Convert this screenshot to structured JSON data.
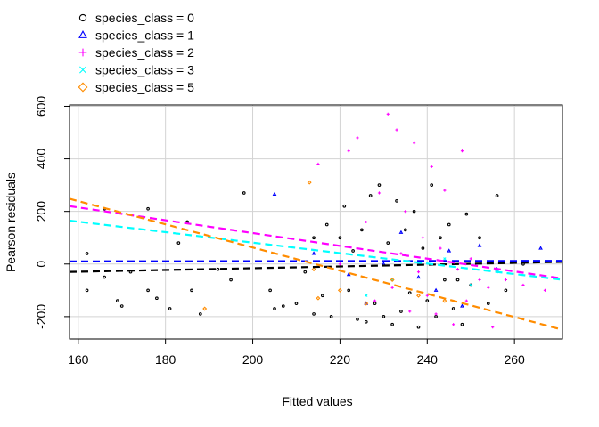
{
  "chart_data": {
    "type": "scatter",
    "title": "",
    "xlabel": "Fitted values",
    "ylabel": "Pearson residuals",
    "xlim": [
      158,
      271
    ],
    "ylim": [
      -285,
      605
    ],
    "xticks": [
      160,
      180,
      200,
      220,
      240,
      260
    ],
    "yticks": [
      -200,
      0,
      200,
      400,
      600
    ],
    "grid": true,
    "legend_position": "top-left",
    "series": [
      {
        "name": "species_class = 0",
        "color": "#000000",
        "marker": "circle",
        "fit": {
          "x": [
            158,
            271
          ],
          "y": [
            -30,
            8
          ]
        },
        "points": [
          [
            162,
            40
          ],
          [
            162,
            -100
          ],
          [
            166,
            -50
          ],
          [
            166,
            210
          ],
          [
            169,
            -140
          ],
          [
            170,
            -160
          ],
          [
            172,
            -30
          ],
          [
            176,
            -100
          ],
          [
            176,
            210
          ],
          [
            178,
            -130
          ],
          [
            181,
            -170
          ],
          [
            183,
            80
          ],
          [
            185,
            160
          ],
          [
            186,
            -100
          ],
          [
            188,
            -190
          ],
          [
            192,
            -20
          ],
          [
            195,
            -60
          ],
          [
            198,
            270
          ],
          [
            204,
            -100
          ],
          [
            205,
            -170
          ],
          [
            207,
            -160
          ],
          [
            210,
            -150
          ],
          [
            212,
            -30
          ],
          [
            214,
            100
          ],
          [
            214,
            -190
          ],
          [
            216,
            -120
          ],
          [
            217,
            150
          ],
          [
            218,
            -200
          ],
          [
            220,
            100
          ],
          [
            221,
            220
          ],
          [
            222,
            -100
          ],
          [
            223,
            50
          ],
          [
            224,
            -210
          ],
          [
            225,
            130
          ],
          [
            226,
            -220
          ],
          [
            227,
            260
          ],
          [
            228,
            -150
          ],
          [
            229,
            300
          ],
          [
            230,
            -200
          ],
          [
            231,
            80
          ],
          [
            232,
            -230
          ],
          [
            233,
            240
          ],
          [
            234,
            -180
          ],
          [
            235,
            130
          ],
          [
            236,
            -110
          ],
          [
            237,
            200
          ],
          [
            238,
            -240
          ],
          [
            239,
            60
          ],
          [
            240,
            -140
          ],
          [
            241,
            300
          ],
          [
            242,
            -200
          ],
          [
            243,
            100
          ],
          [
            244,
            -60
          ],
          [
            245,
            150
          ],
          [
            246,
            -170
          ],
          [
            247,
            -60
          ],
          [
            248,
            -230
          ],
          [
            249,
            190
          ],
          [
            250,
            -80
          ],
          [
            252,
            100
          ],
          [
            254,
            -150
          ],
          [
            256,
            260
          ],
          [
            258,
            -100
          ],
          [
            262,
            0
          ]
        ]
      },
      {
        "name": "species_class = 1",
        "color": "#0000ff",
        "marker": "triangle",
        "fit": {
          "x": [
            158,
            271
          ],
          "y": [
            10,
            12
          ]
        },
        "points": [
          [
            205,
            265
          ],
          [
            214,
            40
          ],
          [
            222,
            -40
          ],
          [
            226,
            -150
          ],
          [
            230,
            0
          ],
          [
            234,
            120
          ],
          [
            238,
            -50
          ],
          [
            242,
            -100
          ],
          [
            245,
            50
          ],
          [
            248,
            -160
          ],
          [
            252,
            70
          ],
          [
            256,
            -20
          ],
          [
            266,
            60
          ]
        ]
      },
      {
        "name": "species_class = 2",
        "color": "#ff00ff",
        "marker": "plus",
        "fit": {
          "x": [
            158,
            271
          ],
          "y": [
            220,
            -55
          ]
        },
        "points": [
          [
            215,
            380
          ],
          [
            220,
            0
          ],
          [
            222,
            430
          ],
          [
            224,
            480
          ],
          [
            226,
            160
          ],
          [
            228,
            -140
          ],
          [
            229,
            270
          ],
          [
            231,
            570
          ],
          [
            232,
            -90
          ],
          [
            233,
            510
          ],
          [
            234,
            40
          ],
          [
            235,
            200
          ],
          [
            236,
            -180
          ],
          [
            237,
            460
          ],
          [
            238,
            -30
          ],
          [
            239,
            100
          ],
          [
            240,
            -120
          ],
          [
            241,
            370
          ],
          [
            242,
            -190
          ],
          [
            243,
            60
          ],
          [
            244,
            280
          ],
          [
            246,
            -230
          ],
          [
            247,
            -20
          ],
          [
            248,
            430
          ],
          [
            249,
            -140
          ],
          [
            250,
            20
          ],
          [
            252,
            -60
          ],
          [
            254,
            -90
          ],
          [
            255,
            -240
          ],
          [
            258,
            -60
          ],
          [
            262,
            -80
          ],
          [
            267,
            -100
          ]
        ]
      },
      {
        "name": "species_class = 3",
        "color": "#00ffff",
        "marker": "x",
        "fit": {
          "x": [
            158,
            271
          ],
          "y": [
            165,
            -60
          ]
        },
        "points": [
          [
            226,
            -120
          ],
          [
            232,
            -60
          ],
          [
            238,
            0
          ],
          [
            244,
            20
          ],
          [
            250,
            -80
          ],
          [
            256,
            -30
          ]
        ]
      },
      {
        "name": "species_class = 5",
        "color": "#ff8c00",
        "marker": "diamond",
        "fit": {
          "x": [
            158,
            271
          ],
          "y": [
            248,
            -250
          ]
        },
        "points": [
          [
            189,
            -170
          ],
          [
            213,
            310
          ],
          [
            214,
            -20
          ],
          [
            215,
            -130
          ],
          [
            220,
            -100
          ],
          [
            226,
            -150
          ],
          [
            232,
            -60
          ],
          [
            238,
            -120
          ],
          [
            244,
            -140
          ]
        ]
      }
    ]
  }
}
